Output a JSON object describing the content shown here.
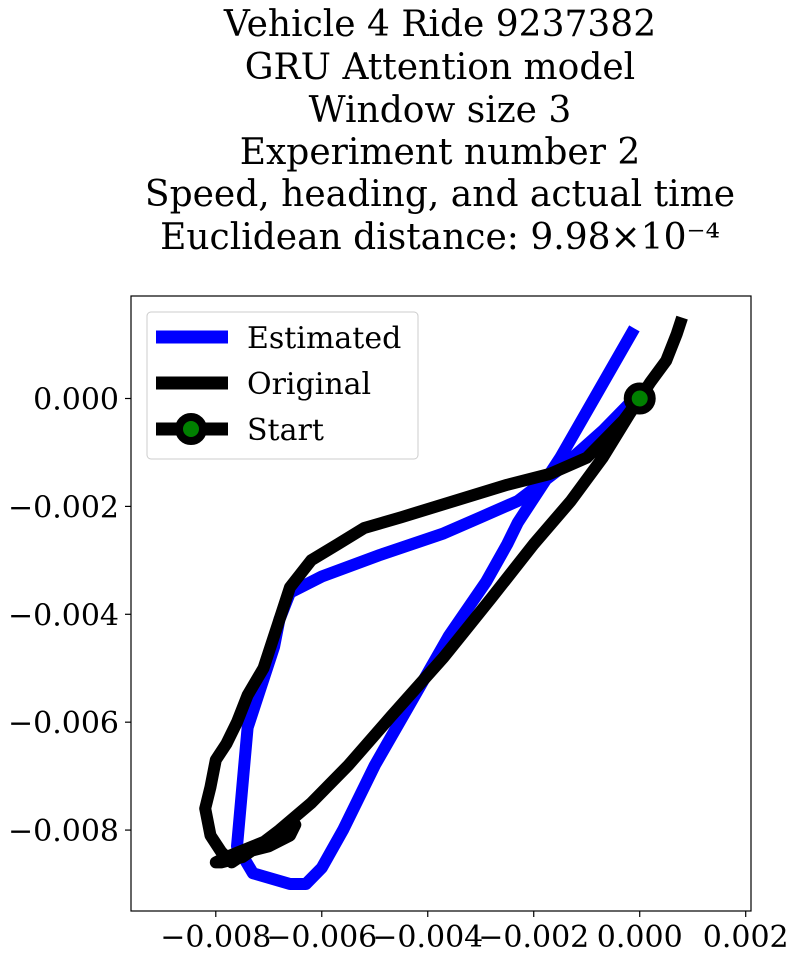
{
  "chart_data": {
    "type": "line",
    "title_lines": [
      "Vehicle 4 Ride 9237382",
      "GRU Attention model",
      "Window size 3",
      "Experiment number 2",
      "Speed, heading, and actual time",
      "Euclidean distance: 9.98×10⁻⁴"
    ],
    "xlabel": "",
    "ylabel": "",
    "xlim": [
      -0.0096,
      0.0021
    ],
    "ylim": [
      -0.0095,
      0.0019
    ],
    "xticks": [
      -0.008,
      -0.006,
      -0.004,
      -0.002,
      0.0,
      0.002
    ],
    "xtick_labels": [
      "−0.008",
      "−0.006",
      "−0.004",
      "−0.002",
      "0.000",
      "0.002"
    ],
    "yticks": [
      0.0,
      -0.002,
      -0.004,
      -0.006,
      -0.008
    ],
    "ytick_labels": [
      "0.000",
      "−0.002",
      "−0.004",
      "−0.006",
      "−0.008"
    ],
    "grid": false,
    "legend_position": "top-left",
    "legend": [
      "Estimated",
      "Original",
      "Start"
    ],
    "colors": {
      "estimated": "#0000ff",
      "original": "#000000",
      "start_fill": "#008000",
      "start_edge": "#000000"
    },
    "series": [
      {
        "name": "Estimated",
        "x": [
          -0.0001,
          -0.0008,
          -0.0015,
          -0.0023,
          -0.0025,
          -0.0029,
          -0.0036,
          -0.0043,
          -0.005,
          -0.0056,
          -0.006,
          -0.0063,
          -0.0066,
          -0.0073,
          -0.0076,
          -0.0074,
          -0.0069,
          -0.0068,
          -0.0066,
          -0.006,
          -0.0049,
          -0.0037,
          -0.003,
          -0.0023,
          -0.0015,
          -0.0007,
          -0.0001
        ],
        "y": [
          0.0013,
          0.0001,
          -0.0011,
          -0.0023,
          -0.0027,
          -0.0034,
          -0.0044,
          -0.0056,
          -0.0068,
          -0.008,
          -0.0087,
          -0.009,
          -0.009,
          -0.0088,
          -0.0083,
          -0.0061,
          -0.0046,
          -0.0041,
          -0.0036,
          -0.0033,
          -0.0029,
          -0.0025,
          -0.0022,
          -0.0019,
          -0.0013,
          -0.0006,
          0.0
        ]
      },
      {
        "name": "Original",
        "x": [
          0.0008,
          0.0007,
          0.0005,
          0.0002,
          -0.0002,
          -0.0007,
          -0.0013,
          -0.002,
          -0.0028,
          -0.0037,
          -0.0047,
          -0.0055,
          -0.0062,
          -0.0068,
          -0.0072,
          -0.0075,
          -0.0079,
          -0.008,
          -0.008,
          -0.0078,
          -0.0073,
          -0.0068,
          -0.0065,
          -0.0066,
          -0.007,
          -0.0074,
          -0.0077,
          -0.0079,
          -0.0081,
          -0.0082,
          -0.0081,
          -0.008,
          -0.0078,
          -0.0076,
          -0.0074,
          -0.0071,
          -0.0068,
          -0.0066,
          -0.0062,
          -0.0057,
          -0.0052,
          -0.0045,
          -0.0035,
          -0.0025,
          -0.0017,
          -0.001,
          -0.0006,
          -0.0003,
          0.0
        ],
        "y": [
          0.0015,
          0.0012,
          0.0007,
          0.0003,
          -0.0003,
          -0.0011,
          -0.0019,
          -0.0027,
          -0.0037,
          -0.0048,
          -0.0059,
          -0.0068,
          -0.0075,
          -0.008,
          -0.0083,
          -0.0085,
          -0.0086,
          -0.0086,
          -0.0086,
          -0.0085,
          -0.0083,
          -0.0081,
          -0.0079,
          -0.0081,
          -0.0083,
          -0.0084,
          -0.0086,
          -0.0084,
          -0.0081,
          -0.0076,
          -0.0072,
          -0.0067,
          -0.0064,
          -0.006,
          -0.0055,
          -0.005,
          -0.0041,
          -0.0035,
          -0.003,
          -0.0027,
          -0.0024,
          -0.0022,
          -0.0019,
          -0.0016,
          -0.0014,
          -0.0011,
          -0.0007,
          -0.0004,
          0.0
        ]
      },
      {
        "name": "Start",
        "x": [
          0.0
        ],
        "y": [
          0.0
        ]
      }
    ]
  }
}
